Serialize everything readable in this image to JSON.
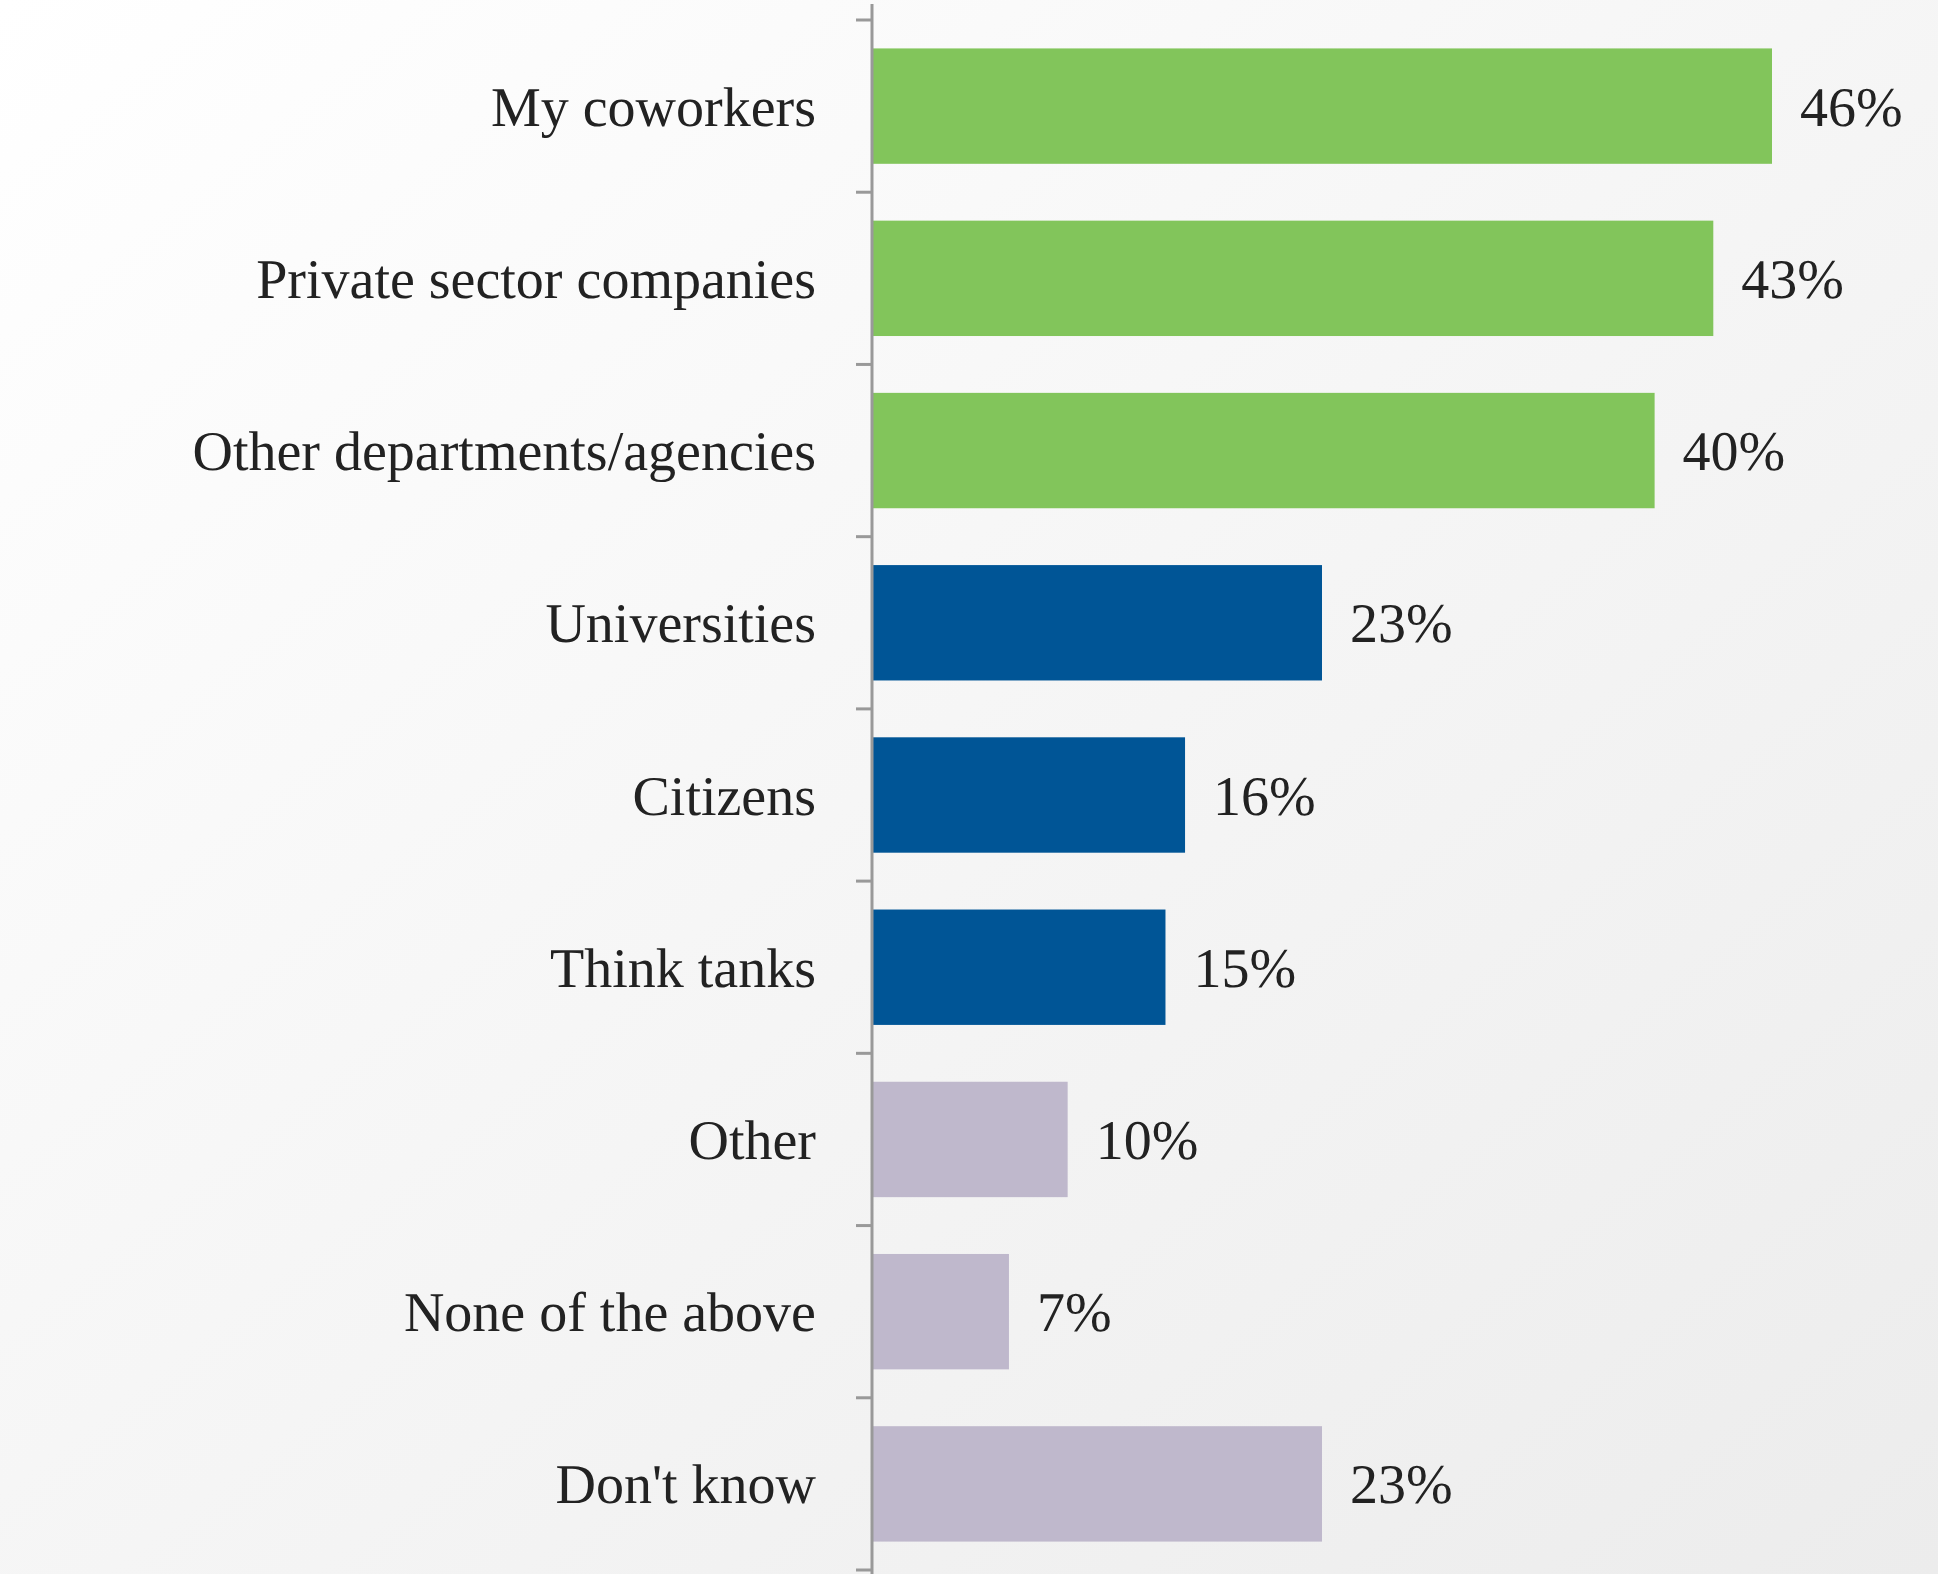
{
  "chart_data": {
    "type": "bar",
    "orientation": "horizontal",
    "categories": [
      "My coworkers",
      "Private sector companies",
      "Other departments/agencies",
      "Universities",
      "Citizens",
      "Think tanks",
      "Other",
      "None of the above",
      "Don't know"
    ],
    "values": [
      46,
      43,
      40,
      23,
      16,
      15,
      10,
      7,
      23
    ],
    "colors": [
      "#82c55b",
      "#82c55b",
      "#82c55b",
      "#005596",
      "#005596",
      "#005596",
      "#bfb8cc",
      "#bfb8cc",
      "#bfb8cc"
    ],
    "value_labels": [
      "46%",
      "43%",
      "40%",
      "23%",
      "16%",
      "15%",
      "10%",
      "7%",
      "23%"
    ]
  }
}
